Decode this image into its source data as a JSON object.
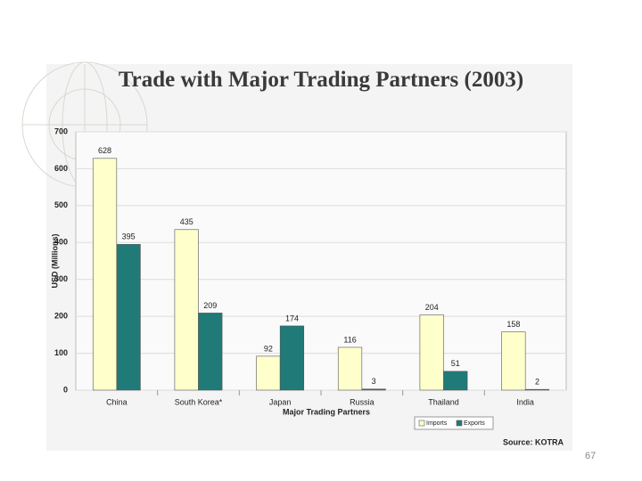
{
  "chart_data": {
    "type": "bar",
    "title": "Trade with Major Trading Partners (2003)",
    "x_label": "Major Trading Partners",
    "y_label": "USD (Millions)",
    "categories": [
      "China",
      "South Korea*",
      "Japan",
      "Russia",
      "Thailand",
      "India"
    ],
    "series": [
      {
        "name": "Imports",
        "color": "#ffffcc",
        "values": [
          628,
          435,
          92,
          116,
          204,
          158
        ]
      },
      {
        "name": "Exports",
        "color": "#1f7a78",
        "values": [
          395,
          209,
          174,
          3,
          51,
          2
        ]
      }
    ],
    "ylim": [
      0,
      700
    ],
    "yticks": [
      0,
      100,
      200,
      300,
      400,
      500,
      600,
      700
    ],
    "grid": true,
    "legend": "bottom-right",
    "source": "Source: KOTRA"
  },
  "page_number": "67"
}
